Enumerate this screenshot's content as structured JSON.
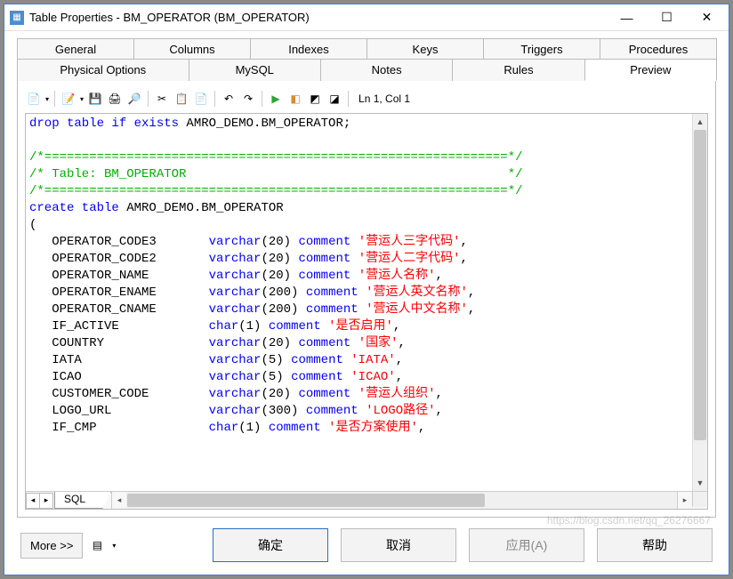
{
  "window": {
    "title": "Table Properties - BM_OPERATOR (BM_OPERATOR)"
  },
  "tabs_row1": [
    {
      "label": "General"
    },
    {
      "label": "Columns"
    },
    {
      "label": "Indexes"
    },
    {
      "label": "Keys"
    },
    {
      "label": "Triggers"
    },
    {
      "label": "Procedures"
    }
  ],
  "tabs_row2": [
    {
      "label": "Physical Options"
    },
    {
      "label": "MySQL"
    },
    {
      "label": "Notes"
    },
    {
      "label": "Rules"
    },
    {
      "label": "Preview",
      "active": true
    }
  ],
  "toolbar_status": "Ln 1, Col 1",
  "sql": {
    "line_drop_pre": "drop table if exists",
    "line_drop_tbl": " AMRO_DEMO.BM_OPERATOR;",
    "cmt_bar": "/*==============================================================*/",
    "cmt_title_pre": "/* Table: ",
    "cmt_title_name": "BM_OPERATOR",
    "cmt_title_pad": "                                           ",
    "cmt_title_post": "*/",
    "create_pre": "create table",
    "create_tbl": " AMRO_DEMO.BM_OPERATOR",
    "cols": [
      {
        "name": "OPERATOR_CODE3",
        "type": "varchar",
        "len": "20",
        "cm": "营运人三字代码"
      },
      {
        "name": "OPERATOR_CODE2",
        "type": "varchar",
        "len": "20",
        "cm": "营运人二字代码"
      },
      {
        "name": "OPERATOR_NAME",
        "type": "varchar",
        "len": "20",
        "cm": "营运人名称"
      },
      {
        "name": "OPERATOR_ENAME",
        "type": "varchar",
        "len": "200",
        "cm": "营运人英文名称"
      },
      {
        "name": "OPERATOR_CNAME",
        "type": "varchar",
        "len": "200",
        "cm": "营运人中文名称"
      },
      {
        "name": "IF_ACTIVE",
        "type": "char",
        "len": "1",
        "cm": "是否启用"
      },
      {
        "name": "COUNTRY",
        "type": "varchar",
        "len": "20",
        "cm": "国家"
      },
      {
        "name": "IATA",
        "type": "varchar",
        "len": "5",
        "cm": "IATA"
      },
      {
        "name": "ICAO",
        "type": "varchar",
        "len": "5",
        "cm": "ICAO"
      },
      {
        "name": "CUSTOMER_CODE",
        "type": "varchar",
        "len": "20",
        "cm": "营运人组织"
      },
      {
        "name": "LOGO_URL",
        "type": "varchar",
        "len": "300",
        "cm": "LOGO路径"
      },
      {
        "name": "IF_CMP",
        "type": "char",
        "len": "1",
        "cm": "是否方案使用"
      }
    ]
  },
  "bottom_tab": "SQL",
  "buttons": {
    "more": "More >>",
    "ok": "确定",
    "cancel": "取消",
    "apply": "应用(A)",
    "help": "帮助"
  },
  "watermark": "https://blog.csdn.net/qq_26276667",
  "colors": {
    "keyword": "#0000ff",
    "comment": "#00b000",
    "string": "#ff0000"
  }
}
